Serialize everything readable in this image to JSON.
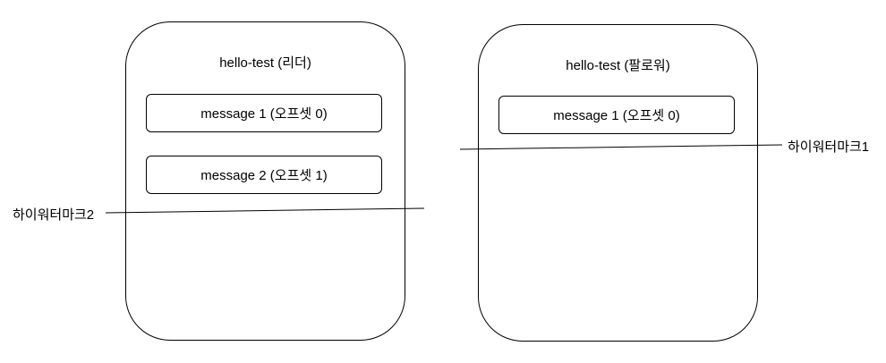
{
  "leader": {
    "title": "hello-test (리더)",
    "messages": [
      {
        "label": "message 1 (오프셋 0)"
      },
      {
        "label": "message 2 (오프셋 1)"
      }
    ]
  },
  "follower": {
    "title": "hello-test (팔로워)",
    "messages": [
      {
        "label": "message 1 (오프셋 0)"
      }
    ]
  },
  "high_watermarks": {
    "follower_label": "하이워터마크1",
    "leader_label": "하이워터마크2"
  }
}
